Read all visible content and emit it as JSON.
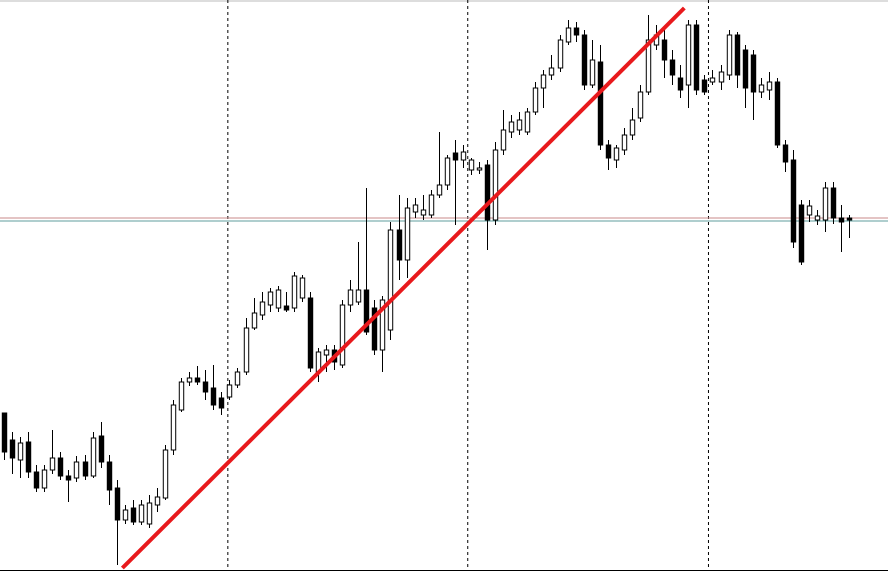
{
  "chart_data": {
    "type": "candlestick",
    "open": [
      160,
      133,
      113,
      131,
      101,
      85,
      103,
      115,
      97,
      95,
      111,
      97,
      137,
      111,
      85,
      53,
      65,
      51,
      49,
      68,
      75,
      123,
      163,
      191,
      195,
      191,
      185,
      175,
      176,
      188,
      201,
      245,
      258,
      268,
      265,
      267,
      265,
      275,
      275,
      201,
      218,
      223,
      208,
      268,
      271,
      283,
      265,
      223,
      243,
      343,
      313,
      361,
      358,
      358,
      378,
      388,
      420,
      413,
      403,
      403,
      408,
      353,
      423,
      441,
      443,
      441,
      461,
      485,
      498,
      505,
      531,
      545,
      538,
      488,
      511,
      428,
      413,
      423,
      438,
      455,
      481,
      528,
      533,
      513,
      495,
      488,
      548,
      493,
      491,
      491,
      498,
      538,
      523,
      518,
      481,
      483,
      491,
      428,
      413,
      368,
      358,
      353,
      353,
      385,
      355,
      355
    ],
    "high": [
      160,
      141,
      136,
      141,
      108,
      108,
      143,
      121,
      103,
      117,
      118,
      141,
      151,
      118,
      93,
      68,
      73,
      73,
      78,
      85,
      128,
      173,
      195,
      201,
      207,
      203,
      208,
      181,
      193,
      205,
      255,
      275,
      281,
      285,
      287,
      281,
      301,
      298,
      281,
      225,
      228,
      228,
      273,
      293,
      331,
      385,
      273,
      277,
      351,
      378,
      375,
      375,
      378,
      383,
      441,
      418,
      433,
      428,
      415,
      411,
      413,
      431,
      463,
      458,
      461,
      465,
      491,
      503,
      518,
      538,
      553,
      551,
      543,
      533,
      528,
      433,
      428,
      445,
      465,
      488,
      558,
      548,
      543,
      523,
      508,
      553,
      553,
      498,
      503,
      508,
      543,
      541,
      528,
      523,
      495,
      501,
      495,
      433,
      423,
      373,
      373,
      363,
      391,
      391,
      368,
      358
    ],
    "low": [
      113,
      99,
      95,
      95,
      81,
      81,
      99,
      93,
      71,
      91,
      93,
      95,
      105,
      68,
      8,
      49,
      48,
      48,
      45,
      61,
      73,
      118,
      161,
      187,
      188,
      173,
      163,
      158,
      173,
      185,
      198,
      243,
      253,
      261,
      261,
      261,
      261,
      271,
      201,
      191,
      201,
      203,
      205,
      261,
      268,
      238,
      218,
      201,
      233,
      293,
      295,
      355,
      353,
      355,
      375,
      383,
      348,
      405,
      398,
      399,
      323,
      348,
      418,
      435,
      438,
      438,
      458,
      465,
      493,
      501,
      528,
      531,
      483,
      485,
      423,
      403,
      405,
      418,
      433,
      451,
      478,
      523,
      495,
      488,
      475,
      465,
      478,
      478,
      488,
      483,
      493,
      485,
      465,
      453,
      475,
      473,
      425,
      401,
      325,
      308,
      351,
      348,
      341,
      349,
      321,
      335
    ],
    "close": [
      121,
      115,
      130,
      101,
      85,
      103,
      115,
      97,
      93,
      111,
      97,
      135,
      111,
      83,
      53,
      63,
      51,
      68,
      70,
      76,
      123,
      168,
      191,
      195,
      191,
      181,
      168,
      165,
      188,
      201,
      245,
      260,
      271,
      281,
      283,
      263,
      297,
      295,
      205,
      221,
      223,
      211,
      268,
      283,
      283,
      241,
      223,
      273,
      343,
      313,
      365,
      368,
      363,
      378,
      388,
      415,
      413,
      421,
      413,
      405,
      353,
      423,
      443,
      451,
      453,
      461,
      485,
      498,
      505,
      533,
      545,
      538,
      488,
      513,
      428,
      415,
      425,
      438,
      453,
      481,
      533,
      538,
      513,
      498,
      483,
      548,
      483,
      481,
      495,
      501,
      538,
      498,
      485,
      481,
      488,
      491,
      428,
      411,
      331,
      311,
      367,
      357,
      385,
      355,
      351,
      353
    ],
    "up_color": "#ffffff",
    "down_color": "#000000",
    "edge_color": "#000000",
    "xlim": [
      -0.5,
      109.8
    ],
    "ylim": [
      0,
      573
    ],
    "separators": [
      27.8,
      57.6,
      87.5
    ],
    "price_lines": [
      {
        "value": 355,
        "color": "#c98a8a"
      },
      {
        "value": 352,
        "color": "#5f9e9e"
      }
    ],
    "trendline": {
      "x": [
        14.7,
        84.5
      ],
      "y": [
        5,
        565
      ],
      "color": "#e8191c"
    }
  }
}
